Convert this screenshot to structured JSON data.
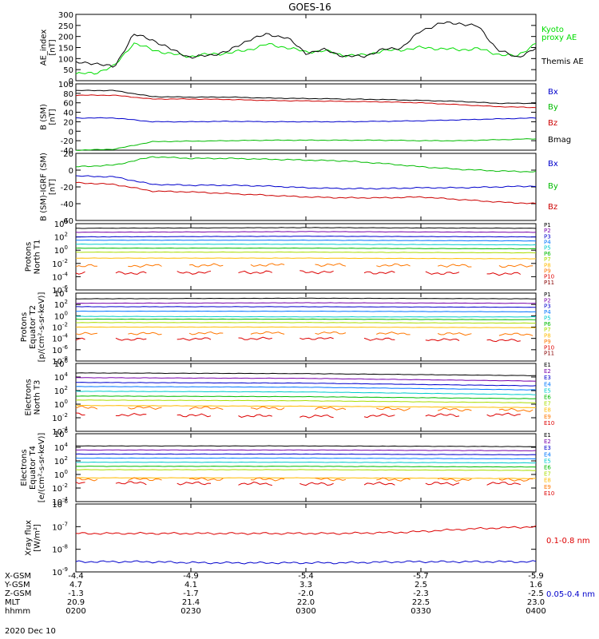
{
  "title": "GOES-16",
  "date": "2020 Dec 10",
  "x_rows": {
    "labels": [
      "X-GSM",
      "Y-GSM",
      "Z-GSM",
      "MLT",
      "hhmm"
    ],
    "values": [
      [
        "-4.4",
        "-4.9",
        "-5.4",
        "-5.7",
        "-5.9"
      ],
      [
        "4.7",
        "4.1",
        "3.3",
        "2.5",
        "1.6"
      ],
      [
        "-1.3",
        "-1.7",
        "-2.0",
        "-2.3",
        "-2.5"
      ],
      [
        "20.9",
        "21.4",
        "22.0",
        "22.5",
        "23.0"
      ],
      [
        "0200",
        "0230",
        "0300",
        "0330",
        "0400"
      ]
    ]
  },
  "chart_data": [
    {
      "type": "line",
      "ylabel": "AE_index [nT]",
      "ylim": [
        0,
        300
      ],
      "yticks": [
        "0",
        "50",
        "100",
        "150",
        "200",
        "250",
        "300"
      ],
      "x": [
        "02:00",
        "02:05",
        "02:10",
        "02:15",
        "02:20",
        "02:25",
        "02:30",
        "02:35",
        "02:40",
        "02:45",
        "02:50",
        "02:55",
        "03:00",
        "03:05",
        "03:10",
        "03:15",
        "03:20",
        "03:25",
        "03:30",
        "03:35",
        "03:40",
        "03:45",
        "03:50",
        "03:55",
        "04:00"
      ],
      "series": [
        {
          "name": "Kyoto proxy AE",
          "color": "#00dd00",
          "values": [
            30,
            35,
            65,
            170,
            140,
            120,
            110,
            120,
            125,
            140,
            165,
            150,
            130,
            135,
            115,
            115,
            135,
            140,
            150,
            145,
            140,
            145,
            120,
            110,
            170
          ]
        },
        {
          "name": "Themis AE",
          "color": "#000000",
          "values": [
            80,
            80,
            60,
            210,
            185,
            140,
            105,
            115,
            135,
            185,
            210,
            195,
            125,
            140,
            110,
            110,
            140,
            150,
            225,
            260,
            260,
            245,
            140,
            105,
            145
          ]
        }
      ]
    },
    {
      "type": "line",
      "ylabel": "B (SM) [nT]",
      "ylim": [
        -40,
        100
      ],
      "yticks": [
        "-40",
        "-20",
        "0",
        "20",
        "40",
        "60",
        "80",
        "100"
      ],
      "x": [
        "02:00",
        "02:10",
        "02:20",
        "02:30",
        "02:40",
        "02:50",
        "03:00",
        "03:10",
        "03:20",
        "03:30",
        "03:40",
        "03:50",
        "04:00"
      ],
      "series": [
        {
          "name": "Bx",
          "color": "#0000cc",
          "values": [
            28,
            28,
            20,
            20,
            21,
            20,
            20,
            20,
            21,
            22,
            24,
            26,
            28
          ]
        },
        {
          "name": "By",
          "color": "#00bb00",
          "values": [
            -40,
            -38,
            -22,
            -21,
            -20,
            -19,
            -19,
            -19,
            -19,
            -20,
            -20,
            -18,
            -16
          ]
        },
        {
          "name": "Bz",
          "color": "#cc0000",
          "values": [
            76,
            76,
            68,
            68,
            67,
            65,
            64,
            63,
            62,
            60,
            56,
            52,
            50
          ]
        },
        {
          "name": "Bmag",
          "color": "#000000",
          "values": [
            86,
            86,
            73,
            72,
            72,
            70,
            69,
            68,
            67,
            65,
            63,
            59,
            59
          ]
        }
      ]
    },
    {
      "type": "line",
      "ylabel": "B (SM)-IGRF (SM) [nT]",
      "ylim": [
        -60,
        20
      ],
      "yticks": [
        "-60",
        "-40",
        "-20",
        "0",
        "20"
      ],
      "x": [
        "02:00",
        "02:10",
        "02:20",
        "02:30",
        "02:40",
        "02:50",
        "03:00",
        "03:10",
        "03:20",
        "03:30",
        "03:40",
        "03:50",
        "04:00"
      ],
      "series": [
        {
          "name": "Bx",
          "color": "#0000cc",
          "values": [
            -7,
            -8,
            -17,
            -18,
            -18,
            -19,
            -21,
            -22,
            -22,
            -21,
            -21,
            -20,
            -19
          ]
        },
        {
          "name": "By",
          "color": "#00bb00",
          "values": [
            4,
            6,
            16,
            14,
            14,
            13,
            12,
            11,
            8,
            4,
            1,
            -1,
            -2
          ]
        },
        {
          "name": "Bz",
          "color": "#cc0000",
          "values": [
            -15,
            -17,
            -25,
            -26,
            -28,
            -30,
            -32,
            -33,
            -33,
            -32,
            -35,
            -38,
            -40
          ]
        }
      ]
    },
    {
      "type": "line",
      "ylabel": "Protons North T1",
      "yscale": "log",
      "ylim_exp": [
        -6,
        4
      ],
      "ytick_exps": [
        -6,
        -4,
        -2,
        0,
        2,
        4
      ],
      "series": [
        {
          "name": "P1",
          "color": "#000000",
          "exps": [
            3.3,
            3.4,
            3.3
          ]
        },
        {
          "name": "P2",
          "color": "#7700aa",
          "exps": [
            2.7,
            2.8,
            2.7
          ]
        },
        {
          "name": "P3",
          "color": "#0000cc",
          "exps": [
            2.0,
            2.1,
            2.0
          ]
        },
        {
          "name": "P4",
          "color": "#0077ff",
          "exps": [
            1.5,
            1.5,
            1.4
          ]
        },
        {
          "name": "P5",
          "color": "#00cccc",
          "exps": [
            0.9,
            0.9,
            0.8
          ]
        },
        {
          "name": "P6",
          "color": "#00bb00",
          "exps": [
            0.3,
            0.3,
            0.2
          ]
        },
        {
          "name": "P7",
          "color": "#aadd00",
          "exps": [
            -0.3,
            -0.3,
            -0.4
          ]
        },
        {
          "name": "P8",
          "color": "#ffbb00",
          "exps": [
            -1.2,
            -1.2,
            -1.3
          ]
        },
        {
          "name": "P9",
          "color": "#ff7700",
          "exps": [
            -2.4,
            -2.2,
            -2.4
          ]
        },
        {
          "name": "P10",
          "color": "#dd0000",
          "exps": [
            -3.5,
            -3.3,
            -3.6
          ]
        },
        {
          "name": "P11",
          "color": "#880000",
          "exps": []
        }
      ]
    },
    {
      "type": "line",
      "ylabel": "Protons Equator T2 [p/(cm²-s-sr-keV)]",
      "yscale": "log",
      "ylim_exp": [
        -8,
        4
      ],
      "ytick_exps": [
        -8,
        -6,
        -4,
        -2,
        0,
        2,
        4
      ],
      "series": [
        {
          "name": "P1",
          "color": "#000000",
          "exps": [
            3.0,
            3.1,
            3.0
          ]
        },
        {
          "name": "P2",
          "color": "#7700aa",
          "exps": [
            2.2,
            2.3,
            2.2
          ]
        },
        {
          "name": "P3",
          "color": "#0000cc",
          "exps": [
            1.6,
            1.6,
            1.5
          ]
        },
        {
          "name": "P4",
          "color": "#0077ff",
          "exps": [
            0.8,
            0.8,
            0.7
          ]
        },
        {
          "name": "P5",
          "color": "#00cccc",
          "exps": [
            -0.1,
            -0.2,
            -0.2
          ]
        },
        {
          "name": "P6",
          "color": "#00bb00",
          "exps": [
            -0.6,
            -0.6,
            -0.7
          ]
        },
        {
          "name": "P7",
          "color": "#aadd00",
          "exps": [
            -1.2,
            -1.2,
            -1.3
          ]
        },
        {
          "name": "P8",
          "color": "#ffbb00",
          "exps": [
            -2.0,
            -2.0,
            -2.1
          ]
        },
        {
          "name": "P9",
          "color": "#ff7700",
          "exps": [
            -3.2,
            -3.0,
            -3.3
          ]
        },
        {
          "name": "P10",
          "color": "#dd0000",
          "exps": [
            -4.2,
            -4.0,
            -4.4
          ]
        },
        {
          "name": "P11",
          "color": "#880000",
          "exps": []
        }
      ]
    },
    {
      "type": "line",
      "ylabel": "Electrons North T3",
      "yscale": "log",
      "ylim_exp": [
        -4,
        6
      ],
      "ytick_exps": [
        -4,
        -2,
        0,
        2,
        4,
        6
      ],
      "series": [
        {
          "name": "E1",
          "color": "#000000",
          "exps": [
            4.6,
            4.5,
            4.2
          ]
        },
        {
          "name": "E2",
          "color": "#7700aa",
          "exps": [
            3.9,
            3.8,
            3.4
          ]
        },
        {
          "name": "E3",
          "color": "#0000cc",
          "exps": [
            3.2,
            3.1,
            2.7
          ]
        },
        {
          "name": "E4",
          "color": "#0077ff",
          "exps": [
            2.6,
            2.5,
            2.1
          ]
        },
        {
          "name": "E5",
          "color": "#00cccc",
          "exps": [
            1.9,
            1.8,
            1.4
          ]
        },
        {
          "name": "E6",
          "color": "#00bb00",
          "exps": [
            1.2,
            1.1,
            0.8
          ]
        },
        {
          "name": "E7",
          "color": "#aadd00",
          "exps": [
            0.6,
            0.5,
            0.2
          ]
        },
        {
          "name": "E8",
          "color": "#ffbb00",
          "exps": [
            -0.2,
            -0.3,
            -0.5
          ]
        },
        {
          "name": "E9",
          "color": "#ff7700",
          "exps": [
            -0.5,
            -0.6,
            -0.9
          ]
        },
        {
          "name": "E10",
          "color": "#dd0000",
          "exps": [
            -1.5,
            -1.8,
            -1.5
          ]
        }
      ]
    },
    {
      "type": "line",
      "ylabel": "Electrons Equator T4 [e/(cm²-s-sr-keV)]",
      "yscale": "log",
      "ylim_exp": [
        -4,
        6
      ],
      "ytick_exps": [
        -4,
        -2,
        0,
        2,
        4,
        6
      ],
      "series": [
        {
          "name": "E1",
          "color": "#000000",
          "exps": [
            4.2,
            4.2,
            4.1
          ]
        },
        {
          "name": "E2",
          "color": "#7700aa",
          "exps": [
            3.6,
            3.6,
            3.5
          ]
        },
        {
          "name": "E3",
          "color": "#0000cc",
          "exps": [
            3.0,
            3.0,
            2.9
          ]
        },
        {
          "name": "E4",
          "color": "#0077ff",
          "exps": [
            2.4,
            2.4,
            2.3
          ]
        },
        {
          "name": "E5",
          "color": "#00cccc",
          "exps": [
            1.8,
            1.8,
            1.7
          ]
        },
        {
          "name": "E6",
          "color": "#00bb00",
          "exps": [
            1.2,
            1.2,
            1.1
          ]
        },
        {
          "name": "E7",
          "color": "#aadd00",
          "exps": [
            0.7,
            0.7,
            0.6
          ]
        },
        {
          "name": "E8",
          "color": "#ffbb00",
          "exps": [
            -0.5,
            -0.5,
            -0.6
          ]
        },
        {
          "name": "E9",
          "color": "#ff7700",
          "exps": [
            -0.7,
            -0.7,
            -0.8
          ]
        },
        {
          "name": "E10",
          "color": "#dd0000",
          "exps": [
            -1.2,
            -1.4,
            -1.3
          ]
        }
      ]
    },
    {
      "type": "line",
      "ylabel": "Xray flux [W/m²]",
      "yscale": "log",
      "ylim_exp": [
        -9,
        -6
      ],
      "ytick_exps": [
        -9,
        -8,
        -7,
        -6
      ],
      "series": [
        {
          "name": "0.1-0.8 nm",
          "color": "#dd0000",
          "exps": [
            -7.3,
            -7.3,
            -7.3,
            -7.3,
            -7.3,
            -7.25,
            -7.1,
            -7.0
          ]
        },
        {
          "name": "0.05-0.4 nm",
          "color": "#0000cc",
          "exps": [
            -8.55,
            -8.55,
            -8.6,
            -8.6,
            -8.6,
            -8.55,
            -8.55,
            -8.55
          ]
        }
      ]
    }
  ]
}
